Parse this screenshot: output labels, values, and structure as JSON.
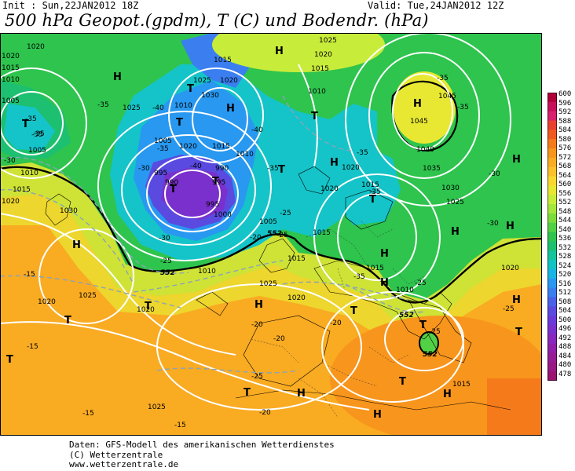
{
  "header": {
    "init": "Init : Sun,22JAN2012 18Z",
    "valid": "Valid: Tue,24JAN2012 12Z",
    "title": "500 hPa Geopot.(gpdm), T (C) und Bodendr. (hPa)"
  },
  "footer": {
    "line1": "Daten: GFS-Modell des amerikanischen Wetterdienstes",
    "line2": "(C) Wetterzentrale",
    "line3": "www.wetterzentrale.de"
  },
  "colorbar": {
    "labels": [
      "600",
      "596",
      "592",
      "588",
      "584",
      "580",
      "576",
      "572",
      "568",
      "564",
      "560",
      "556",
      "552",
      "548",
      "544",
      "540",
      "536",
      "532",
      "528",
      "524",
      "520",
      "516",
      "512",
      "508",
      "504",
      "500",
      "496",
      "492",
      "488",
      "484",
      "480",
      "478"
    ],
    "colors": [
      "#b0003a",
      "#c8105a",
      "#d8206e",
      "#e84030",
      "#f05a20",
      "#f57a1a",
      "#f8951c",
      "#f9ab22",
      "#fbc12a",
      "#f8d830",
      "#e8e832",
      "#c8ec3a",
      "#a4e63c",
      "#7cdc3c",
      "#52d046",
      "#2ec44e",
      "#1cc070",
      "#14c49c",
      "#10c4c4",
      "#18b4e4",
      "#2898f0",
      "#3a7ef0",
      "#4a62e8",
      "#5a4ae0",
      "#6a3ad8",
      "#7a30cc",
      "#8828bc",
      "#9020a8",
      "#961c94",
      "#981884",
      "#9a1470"
    ]
  },
  "map": {
    "colors": {
      "deep": "#6a3ad8",
      "purple": "#5a4ae0",
      "blue": "#2898f0",
      "cyan": "#14c4c8",
      "teal": "#1cc070",
      "green": "#2ec44e",
      "green2": "#52d046",
      "lime": "#c8ec3a",
      "yellow": "#e8e832",
      "orange": "#f9ab22",
      "orange2": "#f8951c",
      "darkorange": "#f57a1a",
      "sea": "#ffffff"
    },
    "pressure_labels": [
      "1020",
      "1015",
      "1010",
      "1005",
      "1000",
      "1025",
      "1030",
      "1035",
      "1040",
      "1045",
      "995",
      "990"
    ],
    "temp_labels": [
      "-35",
      "-40",
      "-30",
      "-25",
      "-20",
      "-15"
    ],
    "geopot_label": "552",
    "highs_lows": [
      "H",
      "T"
    ]
  }
}
